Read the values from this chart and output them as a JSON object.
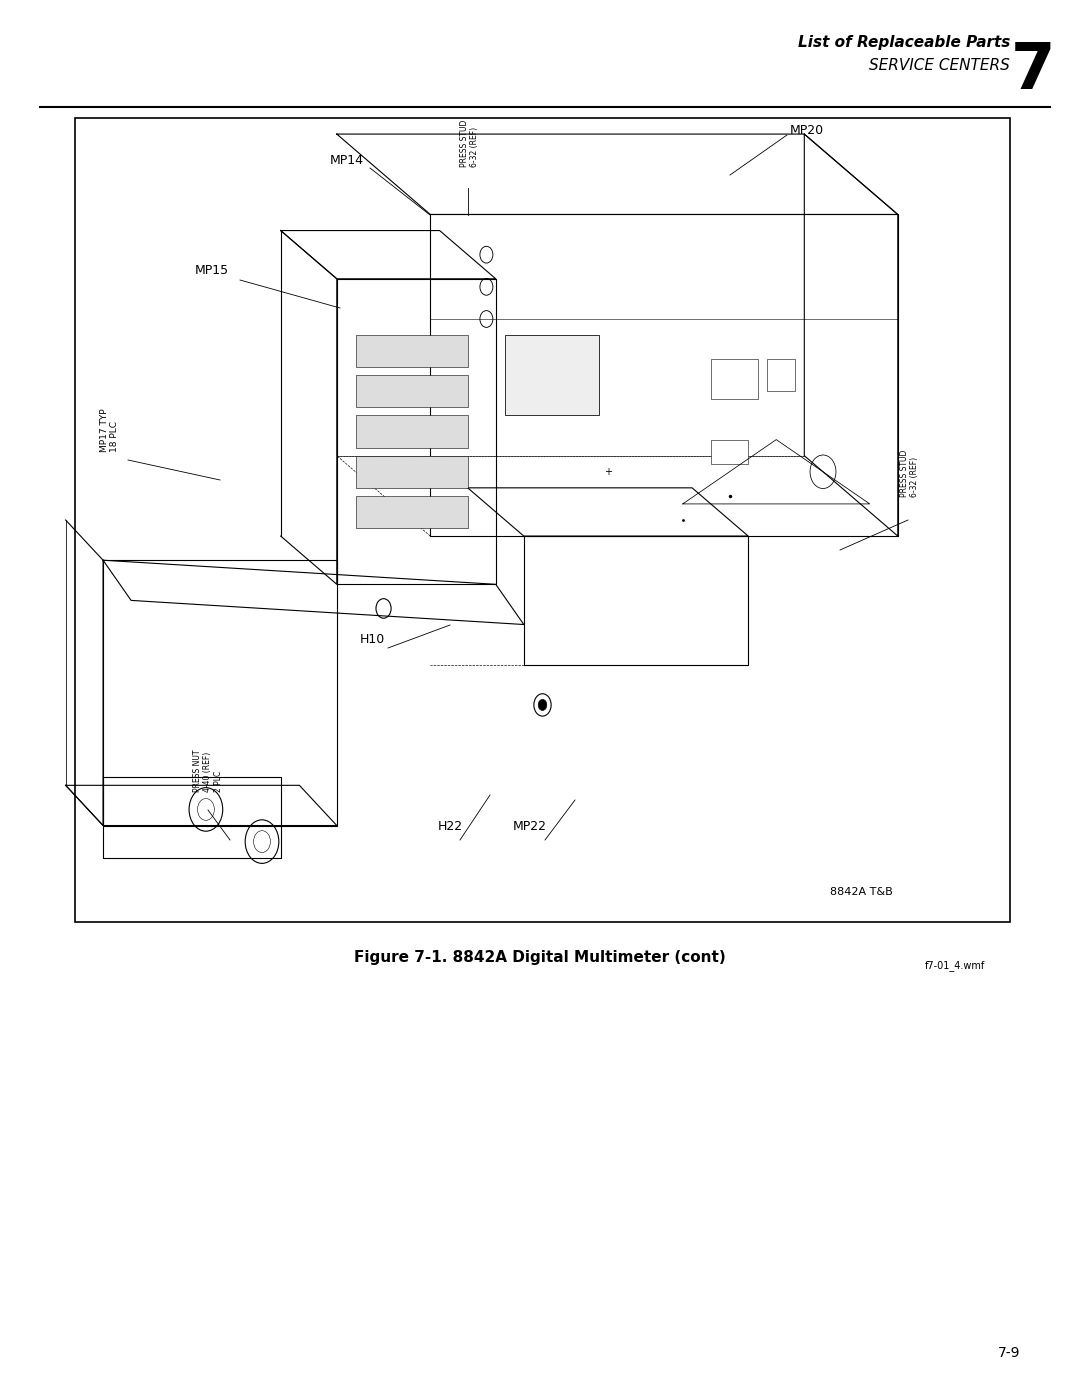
{
  "page_width": 10.8,
  "page_height": 13.97,
  "bg_color": "#ffffff",
  "header_text1": "List of Replaceable Parts",
  "header_text2": "SERVICE CENTERS",
  "header_number": "7",
  "caption": "Figure 7-1. 8842A Digital Multimeter (cont)",
  "file_ref": "f7-01_4.wmf",
  "page_num": "7-9"
}
